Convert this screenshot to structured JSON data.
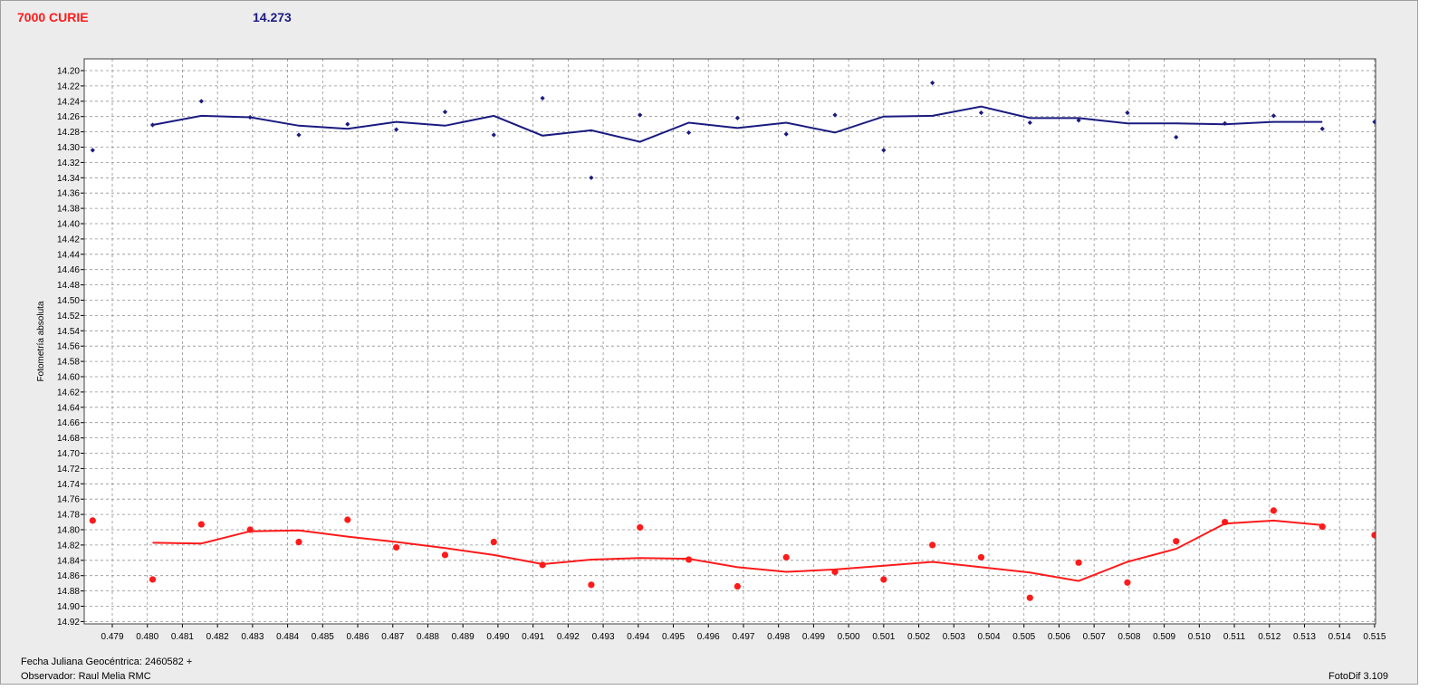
{
  "header": {
    "object_name": "7000 CURIE",
    "reference_mag": "14.273"
  },
  "footer": {
    "date_label": "Fecha Juliana Geocéntrica: 2460582 +",
    "observer_label": "Observador: Raul Melia RMC",
    "version_label": "FotoDif 3.109"
  },
  "colors": {
    "background": "#ececec",
    "plot_background": "#ffffff",
    "grid": "#909090",
    "series_upper": "#1a1a80",
    "series_lower": "#ff1a1a"
  },
  "chart_data": {
    "type": "scatter",
    "ylabel": "Fotometría absoluta",
    "xlabel": "",
    "y_inverted": true,
    "ylim": [
      14.19,
      14.93
    ],
    "xlim": [
      0.4784,
      0.5151
    ],
    "yticks": [
      "14.20",
      "14.22",
      "14.24",
      "14.26",
      "14.28",
      "14.30",
      "14.32",
      "14.34",
      "14.36",
      "14.38",
      "14.40",
      "14.42",
      "14.44",
      "14.46",
      "14.48",
      "14.50",
      "14.52",
      "14.54",
      "14.56",
      "14.58",
      "14.60",
      "14.62",
      "14.64",
      "14.66",
      "14.68",
      "14.70",
      "14.72",
      "14.74",
      "14.76",
      "14.78",
      "14.80",
      "14.82",
      "14.84",
      "14.86",
      "14.88",
      "14.90",
      "14.92"
    ],
    "xticks": [
      "0.479",
      "0.480",
      "0.481",
      "0.482",
      "0.483",
      "0.484",
      "0.485",
      "0.486",
      "0.487",
      "0.488",
      "0.489",
      "0.490",
      "0.491",
      "0.492",
      "0.493",
      "0.494",
      "0.495",
      "0.496",
      "0.497",
      "0.498",
      "0.499",
      "0.500",
      "0.501",
      "0.502",
      "0.503",
      "0.504",
      "0.505",
      "0.506",
      "0.507",
      "0.508",
      "0.509",
      "0.510",
      "0.511",
      "0.512",
      "0.513",
      "0.514",
      "0.515"
    ],
    "grid": true,
    "series": [
      {
        "color": "#1a1a80",
        "points": [
          {
            "x": 0.47844,
            "y": 14.304
          },
          {
            "x": 0.48015,
            "y": 14.271
          },
          {
            "x": 0.48154,
            "y": 14.24
          },
          {
            "x": 0.48293,
            "y": 14.261
          },
          {
            "x": 0.48432,
            "y": 14.284
          },
          {
            "x": 0.48571,
            "y": 14.27
          },
          {
            "x": 0.4871,
            "y": 14.277
          },
          {
            "x": 0.48849,
            "y": 14.254
          },
          {
            "x": 0.48988,
            "y": 14.284
          },
          {
            "x": 0.49127,
            "y": 14.236
          },
          {
            "x": 0.49266,
            "y": 14.34
          },
          {
            "x": 0.49405,
            "y": 14.258
          },
          {
            "x": 0.49544,
            "y": 14.281
          },
          {
            "x": 0.49683,
            "y": 14.262
          },
          {
            "x": 0.49822,
            "y": 14.283
          },
          {
            "x": 0.49961,
            "y": 14.258
          },
          {
            "x": 0.501,
            "y": 14.304
          },
          {
            "x": 0.50239,
            "y": 14.216
          },
          {
            "x": 0.50378,
            "y": 14.255
          },
          {
            "x": 0.50517,
            "y": 14.268
          },
          {
            "x": 0.50656,
            "y": 14.265
          },
          {
            "x": 0.50795,
            "y": 14.255
          },
          {
            "x": 0.50934,
            "y": 14.287
          },
          {
            "x": 0.51073,
            "y": 14.269
          },
          {
            "x": 0.51212,
            "y": 14.259
          },
          {
            "x": 0.51351,
            "y": 14.276
          },
          {
            "x": 0.515,
            "y": 14.267
          }
        ],
        "smoothed": [
          {
            "x": 0.48015,
            "y": 14.271
          },
          {
            "x": 0.48154,
            "y": 14.259
          },
          {
            "x": 0.48293,
            "y": 14.261
          },
          {
            "x": 0.48432,
            "y": 14.272
          },
          {
            "x": 0.48571,
            "y": 14.276
          },
          {
            "x": 0.4871,
            "y": 14.267
          },
          {
            "x": 0.48849,
            "y": 14.272
          },
          {
            "x": 0.48988,
            "y": 14.259
          },
          {
            "x": 0.49127,
            "y": 14.285
          },
          {
            "x": 0.49266,
            "y": 14.278
          },
          {
            "x": 0.49405,
            "y": 14.293
          },
          {
            "x": 0.49544,
            "y": 14.268
          },
          {
            "x": 0.49683,
            "y": 14.275
          },
          {
            "x": 0.49822,
            "y": 14.268
          },
          {
            "x": 0.49961,
            "y": 14.281
          },
          {
            "x": 0.501,
            "y": 14.26
          },
          {
            "x": 0.50239,
            "y": 14.259
          },
          {
            "x": 0.50378,
            "y": 14.247
          },
          {
            "x": 0.50517,
            "y": 14.262
          },
          {
            "x": 0.50656,
            "y": 14.262
          },
          {
            "x": 0.50795,
            "y": 14.269
          },
          {
            "x": 0.50934,
            "y": 14.269
          },
          {
            "x": 0.51073,
            "y": 14.27
          },
          {
            "x": 0.51212,
            "y": 14.267
          },
          {
            "x": 0.51351,
            "y": 14.267
          }
        ]
      },
      {
        "color": "#ff1a1a",
        "points": [
          {
            "x": 0.47844,
            "y": 14.788
          },
          {
            "x": 0.48015,
            "y": 14.865
          },
          {
            "x": 0.48154,
            "y": 14.793
          },
          {
            "x": 0.48293,
            "y": 14.8
          },
          {
            "x": 0.48432,
            "y": 14.816
          },
          {
            "x": 0.48571,
            "y": 14.787
          },
          {
            "x": 0.4871,
            "y": 14.823
          },
          {
            "x": 0.48849,
            "y": 14.833
          },
          {
            "x": 0.48988,
            "y": 14.816
          },
          {
            "x": 0.49127,
            "y": 14.846
          },
          {
            "x": 0.49266,
            "y": 14.872
          },
          {
            "x": 0.49405,
            "y": 14.797
          },
          {
            "x": 0.49544,
            "y": 14.839
          },
          {
            "x": 0.49683,
            "y": 14.874
          },
          {
            "x": 0.49822,
            "y": 14.836
          },
          {
            "x": 0.49961,
            "y": 14.855
          },
          {
            "x": 0.501,
            "y": 14.865
          },
          {
            "x": 0.50239,
            "y": 14.82
          },
          {
            "x": 0.50378,
            "y": 14.836
          },
          {
            "x": 0.50517,
            "y": 14.889
          },
          {
            "x": 0.50656,
            "y": 14.843
          },
          {
            "x": 0.50795,
            "y": 14.869
          },
          {
            "x": 0.50934,
            "y": 14.815
          },
          {
            "x": 0.51073,
            "y": 14.79
          },
          {
            "x": 0.51212,
            "y": 14.775
          },
          {
            "x": 0.51351,
            "y": 14.796
          },
          {
            "x": 0.515,
            "y": 14.807
          }
        ],
        "smoothed": [
          {
            "x": 0.48015,
            "y": 14.817
          },
          {
            "x": 0.48154,
            "y": 14.818
          },
          {
            "x": 0.48293,
            "y": 14.802
          },
          {
            "x": 0.48432,
            "y": 14.801
          },
          {
            "x": 0.48571,
            "y": 14.809
          },
          {
            "x": 0.4871,
            "y": 14.816
          },
          {
            "x": 0.48849,
            "y": 14.824
          },
          {
            "x": 0.48988,
            "y": 14.833
          },
          {
            "x": 0.49127,
            "y": 14.845
          },
          {
            "x": 0.49266,
            "y": 14.839
          },
          {
            "x": 0.49405,
            "y": 14.837
          },
          {
            "x": 0.49544,
            "y": 14.838
          },
          {
            "x": 0.49683,
            "y": 14.849
          },
          {
            "x": 0.49822,
            "y": 14.855
          },
          {
            "x": 0.49961,
            "y": 14.852
          },
          {
            "x": 0.501,
            "y": 14.847
          },
          {
            "x": 0.50239,
            "y": 14.842
          },
          {
            "x": 0.50378,
            "y": 14.849
          },
          {
            "x": 0.50517,
            "y": 14.856
          },
          {
            "x": 0.50656,
            "y": 14.867
          },
          {
            "x": 0.50795,
            "y": 14.842
          },
          {
            "x": 0.50934,
            "y": 14.825
          },
          {
            "x": 0.51073,
            "y": 14.792
          },
          {
            "x": 0.51212,
            "y": 14.788
          },
          {
            "x": 0.51351,
            "y": 14.794
          }
        ]
      }
    ]
  }
}
